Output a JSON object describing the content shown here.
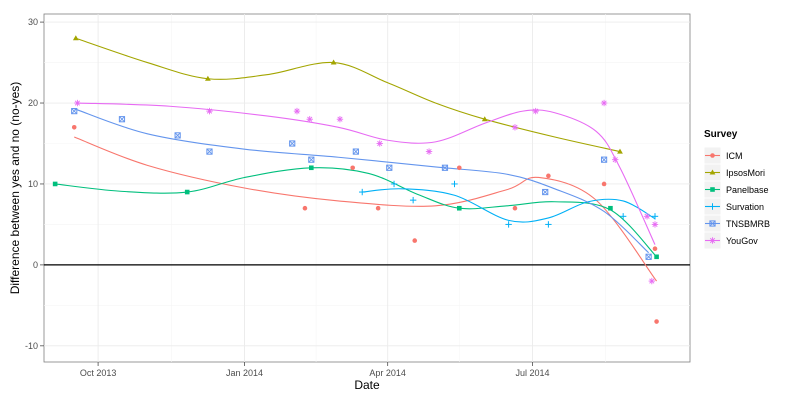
{
  "chart_data": {
    "type": "scatter",
    "xlabel": "Date",
    "ylabel": "Difference between yes and no (no-yes)",
    "x_ticks": [
      "Oct 2013",
      "Jan 2014",
      "Apr 2014",
      "Jul 2014"
    ],
    "y_ticks": [
      "-10",
      "0",
      "10",
      "20",
      "30"
    ],
    "ylim": [
      -12,
      31
    ],
    "xlim": [
      "2013-08-28",
      "2014-10-08"
    ],
    "reference_line": 0,
    "grid": true,
    "legend_title": "Survey",
    "legend_position": "right",
    "smoothed_lines": true,
    "series": [
      {
        "name": "ICM",
        "color": "#F8766D",
        "marker": "circle",
        "points": [
          [
            "2013-09-16",
            17
          ],
          [
            "2014-02-08",
            7
          ],
          [
            "2014-03-10",
            12
          ],
          [
            "2014-03-26",
            7
          ],
          [
            "2014-04-18",
            3
          ],
          [
            "2014-05-16",
            12
          ],
          [
            "2014-06-20",
            7
          ],
          [
            "2014-07-11",
            11
          ],
          [
            "2014-08-15",
            10
          ],
          [
            "2014-09-16",
            2
          ],
          [
            "2014-09-17",
            -7
          ]
        ],
        "trend": [
          [
            "2013-09-16",
            15.8
          ],
          [
            "2013-11-01",
            12.3
          ],
          [
            "2014-01-01",
            9.5
          ],
          [
            "2014-03-01",
            7.9
          ],
          [
            "2014-05-01",
            7.3
          ],
          [
            "2014-06-15",
            9.3
          ],
          [
            "2014-07-05",
            10.8
          ],
          [
            "2014-08-10",
            8.0
          ],
          [
            "2014-09-17",
            -2.0
          ]
        ]
      },
      {
        "name": "IpsosMori",
        "color": "#A3A500",
        "marker": "triangle",
        "points": [
          [
            "2013-09-17",
            28
          ],
          [
            "2013-12-09",
            23
          ],
          [
            "2014-02-26",
            25
          ],
          [
            "2014-06-01",
            18
          ],
          [
            "2014-08-25",
            14
          ]
        ],
        "trend": [
          [
            "2013-09-17",
            28.0
          ],
          [
            "2013-11-01",
            25.0
          ],
          [
            "2013-12-09",
            23.0
          ],
          [
            "2014-01-15",
            23.5
          ],
          [
            "2014-02-26",
            25.0
          ],
          [
            "2014-04-01",
            22.5
          ],
          [
            "2014-05-01",
            20.0
          ],
          [
            "2014-06-01",
            18.0
          ],
          [
            "2014-07-15",
            15.8
          ],
          [
            "2014-08-25",
            14.0
          ]
        ]
      },
      {
        "name": "Panelbase",
        "color": "#00BF7D",
        "marker": "square",
        "points": [
          [
            "2013-09-04",
            10
          ],
          [
            "2013-11-26",
            9
          ],
          [
            "2014-02-12",
            12
          ],
          [
            "2014-05-16",
            7
          ],
          [
            "2014-08-19",
            7
          ],
          [
            "2014-09-17",
            1
          ]
        ],
        "trend": [
          [
            "2013-09-04",
            10.0
          ],
          [
            "2013-10-15",
            9.1
          ],
          [
            "2013-11-26",
            9.0
          ],
          [
            "2014-01-01",
            10.8
          ],
          [
            "2014-02-12",
            12.0
          ],
          [
            "2014-03-20",
            11.3
          ],
          [
            "2014-04-20",
            8.7
          ],
          [
            "2014-05-16",
            7.0
          ],
          [
            "2014-06-15",
            7.3
          ],
          [
            "2014-07-15",
            7.8
          ],
          [
            "2014-08-19",
            6.8
          ],
          [
            "2014-09-17",
            1.0
          ]
        ]
      },
      {
        "name": "Survation",
        "color": "#00B0F6",
        "marker": "plus",
        "points": [
          [
            "2014-03-16",
            9
          ],
          [
            "2014-04-05",
            10
          ],
          [
            "2014-04-17",
            8
          ],
          [
            "2014-05-13",
            10
          ],
          [
            "2014-06-16",
            5
          ],
          [
            "2014-07-11",
            5
          ],
          [
            "2014-08-27",
            6
          ],
          [
            "2014-09-16",
            6
          ]
        ],
        "trend": [
          [
            "2014-03-16",
            9.0
          ],
          [
            "2014-04-10",
            9.4
          ],
          [
            "2014-05-13",
            8.6
          ],
          [
            "2014-06-16",
            5.5
          ],
          [
            "2014-07-11",
            5.8
          ],
          [
            "2014-08-05",
            7.8
          ],
          [
            "2014-08-27",
            7.9
          ],
          [
            "2014-09-16",
            5.7
          ]
        ]
      },
      {
        "name": "TNSBMRB",
        "color": "#6495ED",
        "marker": "square-cross",
        "points": [
          [
            "2013-09-16",
            19
          ],
          [
            "2013-10-16",
            18
          ],
          [
            "2013-11-20",
            16
          ],
          [
            "2013-12-10",
            14
          ],
          [
            "2014-01-31",
            15
          ],
          [
            "2014-02-12",
            13
          ],
          [
            "2014-03-12",
            14
          ],
          [
            "2014-04-02",
            12
          ],
          [
            "2014-05-07",
            12
          ],
          [
            "2014-07-09",
            9
          ],
          [
            "2014-08-15",
            13
          ],
          [
            "2014-09-12",
            1
          ]
        ],
        "trend": [
          [
            "2013-09-16",
            19.3
          ],
          [
            "2013-11-01",
            16.2
          ],
          [
            "2014-01-01",
            14.3
          ],
          [
            "2014-03-01",
            13.3
          ],
          [
            "2014-05-01",
            12.1
          ],
          [
            "2014-06-15",
            11.2
          ],
          [
            "2014-07-15",
            9.4
          ],
          [
            "2014-08-15",
            6.6
          ],
          [
            "2014-09-12",
            1.5
          ]
        ]
      },
      {
        "name": "YouGov",
        "color": "#E76BF3",
        "marker": "asterisk",
        "points": [
          [
            "2013-09-18",
            20
          ],
          [
            "2013-12-10",
            19
          ],
          [
            "2014-02-03",
            19
          ],
          [
            "2014-02-11",
            18
          ],
          [
            "2014-03-02",
            18
          ],
          [
            "2014-03-27",
            15
          ],
          [
            "2014-04-27",
            14
          ],
          [
            "2014-06-20",
            17
          ],
          [
            "2014-07-03",
            19
          ],
          [
            "2014-08-15",
            20
          ],
          [
            "2014-08-22",
            13
          ],
          [
            "2014-09-11",
            6
          ],
          [
            "2014-09-14",
            -2
          ],
          [
            "2014-09-16",
            5
          ]
        ],
        "trend": [
          [
            "2013-09-18",
            20.0
          ],
          [
            "2013-11-15",
            19.6
          ],
          [
            "2014-01-15",
            18.4
          ],
          [
            "2014-03-01",
            17.0
          ],
          [
            "2014-04-01",
            15.4
          ],
          [
            "2014-05-01",
            15.2
          ],
          [
            "2014-06-01",
            17.5
          ],
          [
            "2014-06-25",
            19.0
          ],
          [
            "2014-07-15",
            18.8
          ],
          [
            "2014-08-10",
            16.5
          ],
          [
            "2014-08-25",
            12.0
          ],
          [
            "2014-09-16",
            2.5
          ]
        ]
      }
    ]
  }
}
